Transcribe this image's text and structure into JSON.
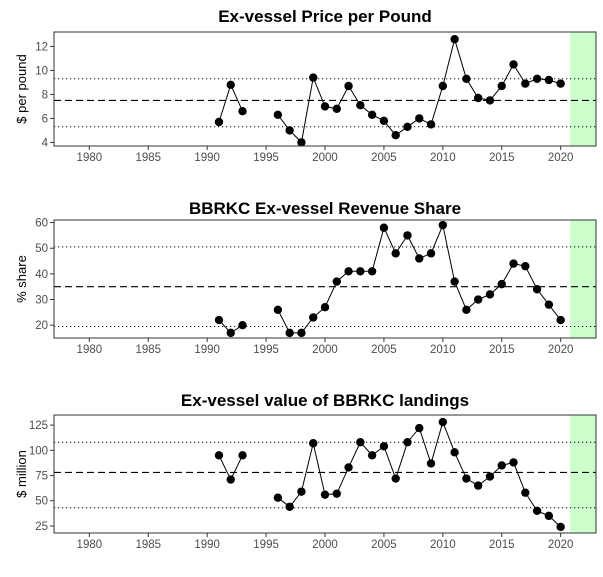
{
  "chart_data": [
    {
      "type": "line",
      "title": "Ex-vessel Price per Pound",
      "xlabel": "",
      "ylabel": "$ per pound",
      "xlim": [
        1977,
        2023
      ],
      "ylim": [
        3.7,
        13.2
      ],
      "x_ticks": [
        1980,
        1985,
        1990,
        1995,
        2000,
        2005,
        2010,
        2015,
        2020
      ],
      "y_ticks": [
        4,
        6,
        8,
        10,
        12
      ],
      "grid": false,
      "mean_line": 7.5,
      "sd_lines": [
        5.3,
        9.3
      ],
      "projection_band": [
        2020.8,
        2023
      ],
      "projection_color": "#ccffcc",
      "series": [
        {
          "x": [
            1991,
            1992,
            1993,
            1996,
            1997,
            1998,
            1999,
            2000,
            2001,
            2002,
            2003,
            2004,
            2005,
            2006,
            2007,
            2008,
            2009,
            2010,
            2011,
            2012,
            2013,
            2014,
            2015,
            2016,
            2017,
            2018,
            2019,
            2020
          ],
          "y": [
            5.7,
            8.8,
            6.6,
            6.3,
            5.0,
            4.0,
            9.4,
            7.0,
            6.8,
            8.7,
            7.1,
            6.3,
            5.8,
            4.6,
            5.3,
            6.0,
            5.5,
            8.7,
            12.6,
            9.3,
            7.7,
            7.5,
            8.7,
            10.5,
            8.9,
            9.3,
            9.2,
            8.9
          ]
        }
      ]
    },
    {
      "type": "line",
      "title": "BBRKC Ex-vessel Revenue Share",
      "xlabel": "",
      "ylabel": "% share",
      "xlim": [
        1977,
        2023
      ],
      "ylim": [
        15,
        61
      ],
      "x_ticks": [
        1980,
        1985,
        1990,
        1995,
        2000,
        2005,
        2010,
        2015,
        2020
      ],
      "y_ticks": [
        20,
        30,
        40,
        50,
        60
      ],
      "grid": false,
      "mean_line": 35,
      "sd_lines": [
        19.5,
        50.5
      ],
      "projection_band": [
        2020.8,
        2023
      ],
      "projection_color": "#ccffcc",
      "series": [
        {
          "x": [
            1991,
            1992,
            1993,
            1996,
            1997,
            1998,
            1999,
            2000,
            2001,
            2002,
            2003,
            2004,
            2005,
            2006,
            2007,
            2008,
            2009,
            2010,
            2011,
            2012,
            2013,
            2014,
            2015,
            2016,
            2017,
            2018,
            2019,
            2020
          ],
          "y": [
            22,
            17,
            20,
            26,
            17,
            17,
            23,
            27,
            37,
            41,
            41,
            41,
            58,
            48,
            55,
            46,
            48,
            59,
            37,
            26,
            30,
            32,
            36,
            44,
            43,
            34,
            28,
            22
          ]
        }
      ]
    },
    {
      "type": "line",
      "title": "Ex-vessel value of BBRKC landings",
      "xlabel": "",
      "ylabel": "$ million",
      "xlim": [
        1977,
        2023
      ],
      "ylim": [
        18,
        135
      ],
      "x_ticks": [
        1980,
        1985,
        1990,
        1995,
        2000,
        2005,
        2010,
        2015,
        2020
      ],
      "y_ticks": [
        25,
        50,
        75,
        100,
        125
      ],
      "grid": false,
      "mean_line": 78,
      "sd_lines": [
        43,
        108
      ],
      "projection_band": [
        2020.8,
        2023
      ],
      "projection_color": "#ccffcc",
      "series": [
        {
          "x": [
            1991,
            1992,
            1993,
            1996,
            1997,
            1998,
            1999,
            2000,
            2001,
            2002,
            2003,
            2004,
            2005,
            2006,
            2007,
            2008,
            2009,
            2010,
            2011,
            2012,
            2013,
            2014,
            2015,
            2016,
            2017,
            2018,
            2019,
            2020
          ],
          "y": [
            95,
            71,
            95,
            53,
            44,
            59,
            107,
            56,
            57,
            83,
            108,
            95,
            104,
            72,
            108,
            122,
            87,
            128,
            98,
            72,
            65,
            74,
            85,
            88,
            58,
            40,
            35,
            24
          ]
        }
      ]
    }
  ]
}
